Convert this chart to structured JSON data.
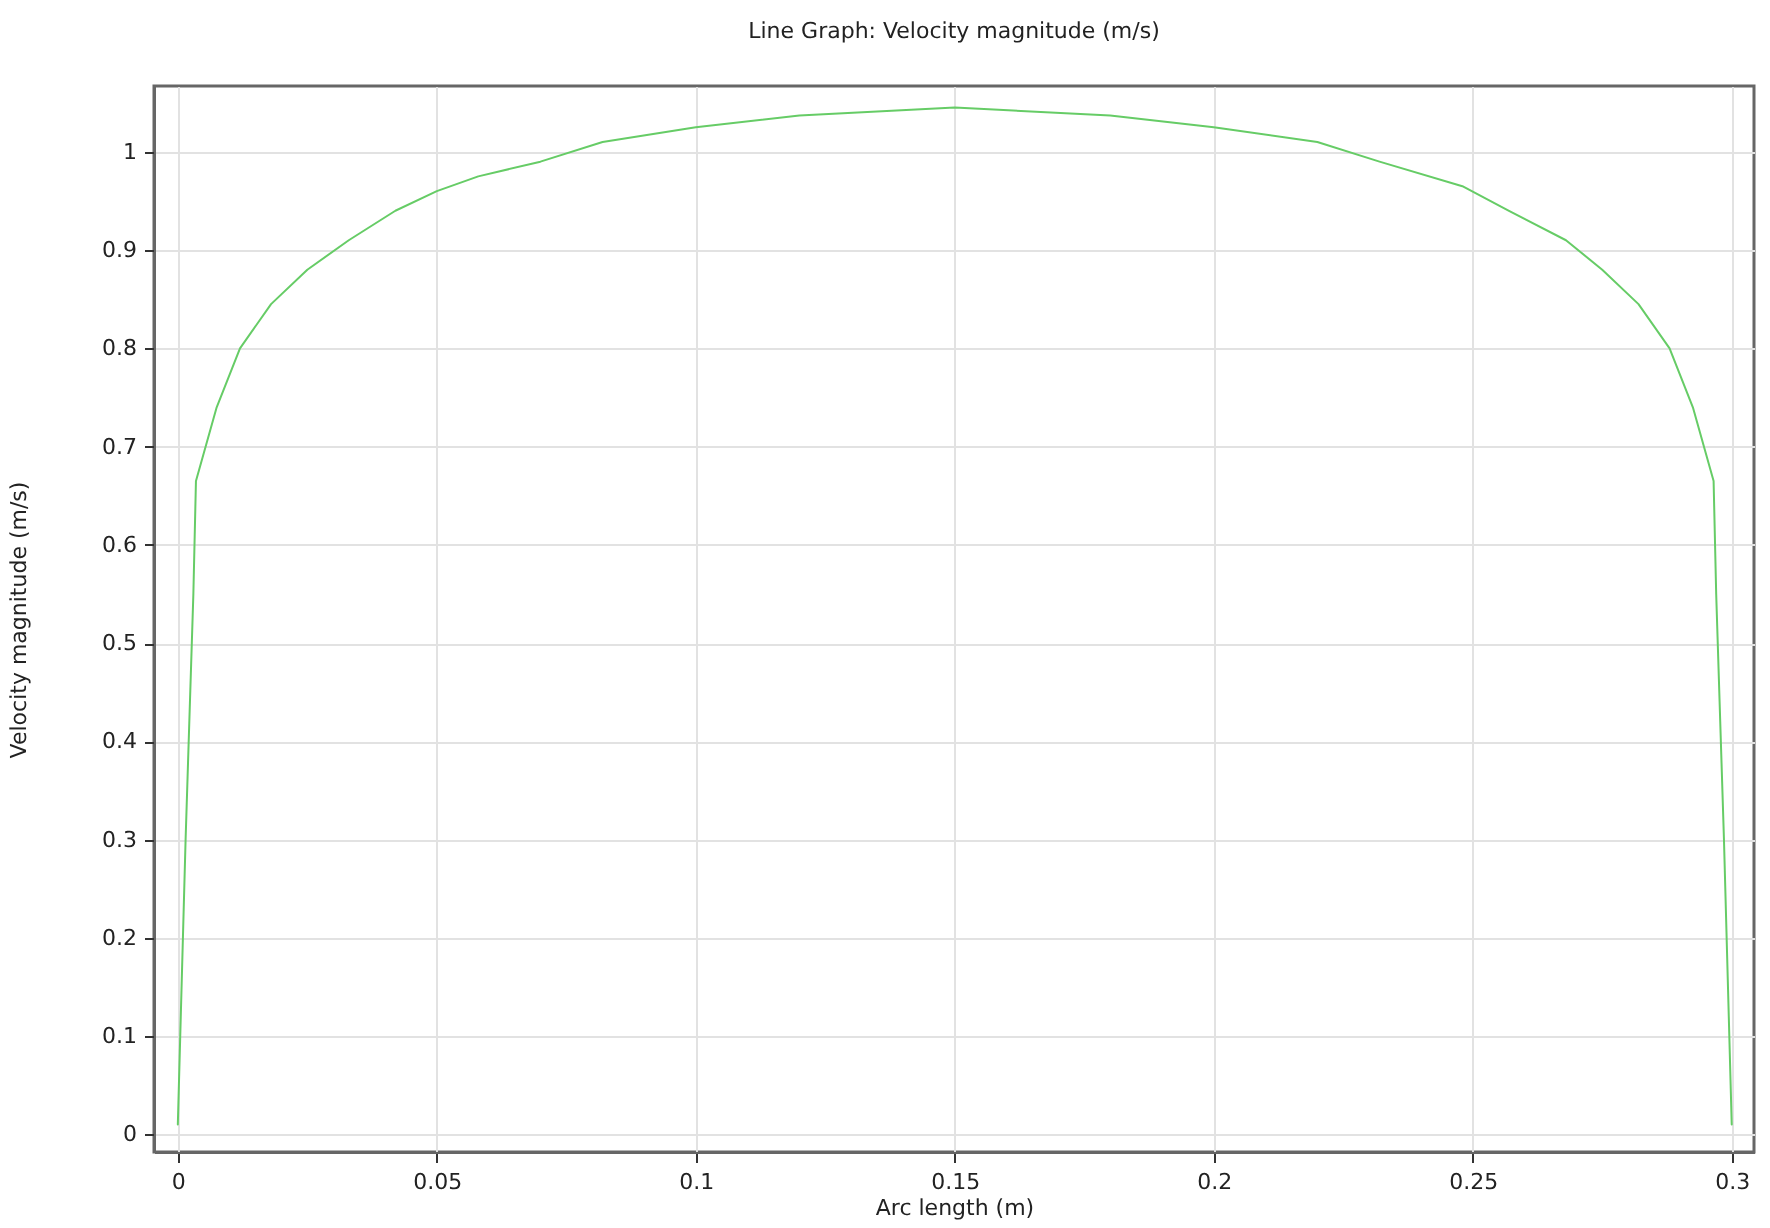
{
  "chart_data": {
    "type": "line",
    "title": "Line Graph: Velocity magnitude (m/s)",
    "xlabel": "Arc length (m)",
    "ylabel": "Velocity magnitude (m/s)",
    "xlim": [
      -0.0046,
      0.3043
    ],
    "ylim": [
      -0.018,
      1.067
    ],
    "xticks": [
      0,
      0.05,
      0.1,
      0.15,
      0.2,
      0.25,
      0.3
    ],
    "yticks": [
      0,
      0.1,
      0.2,
      0.3,
      0.4,
      0.5,
      0.6,
      0.7,
      0.8,
      0.9,
      1
    ],
    "grid": true,
    "series": [
      {
        "color": "#66cc66",
        "x": [
          0,
          0.0015,
          0.003,
          0.0035,
          0.0075,
          0.012,
          0.018,
          0.025,
          0.033,
          0.042,
          0.05,
          0.058,
          0.07,
          0.082,
          0.1,
          0.12,
          0.15,
          0.18,
          0.2,
          0.22,
          0.232,
          0.248,
          0.257,
          0.268,
          0.275,
          0.282,
          0.288,
          0.2925,
          0.2965,
          0.297,
          0.2985,
          0.3
        ],
        "values": [
          0.01,
          0.3,
          0.55,
          0.665,
          0.74,
          0.8,
          0.845,
          0.88,
          0.91,
          0.94,
          0.96,
          0.975,
          0.99,
          1.01,
          1.025,
          1.037,
          1.045,
          1.037,
          1.025,
          1.01,
          0.99,
          0.965,
          0.94,
          0.91,
          0.88,
          0.845,
          0.8,
          0.74,
          0.665,
          0.55,
          0.3,
          0.01
        ]
      }
    ]
  }
}
